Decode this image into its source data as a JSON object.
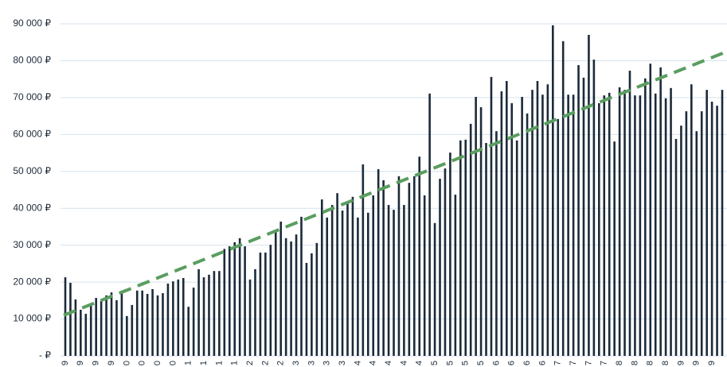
{
  "chart_data": {
    "type": "bar",
    "categories": [
      "9",
      null,
      null,
      "9",
      null,
      null,
      "9",
      null,
      null,
      "9",
      null,
      null,
      "0",
      null,
      null,
      "0",
      null,
      null,
      "0",
      null,
      null,
      "0",
      null,
      null,
      "1",
      null,
      null,
      "1",
      null,
      null,
      "1",
      null,
      null,
      "1",
      null,
      null,
      "2",
      null,
      null,
      "2",
      null,
      null,
      "2",
      null,
      null,
      "3",
      null,
      null,
      "3",
      null,
      null,
      "3",
      null,
      null,
      "3",
      null,
      null,
      "4",
      null,
      null,
      "4",
      null,
      null,
      "4",
      null,
      null,
      "4",
      null,
      null,
      "4",
      null,
      null,
      "5",
      null,
      null,
      "5",
      null,
      null,
      "5",
      null,
      null,
      "5",
      null,
      null,
      "6",
      null,
      null,
      "6",
      null,
      null,
      "6",
      null,
      null,
      "6",
      null,
      null,
      "7",
      null,
      null,
      "7",
      null,
      null,
      "7",
      null,
      null,
      "7",
      null,
      null,
      "8",
      null,
      null,
      "8",
      null,
      null,
      "8",
      null,
      null,
      "8",
      null,
      null,
      "9",
      null,
      null,
      "9",
      null,
      null,
      "9",
      null,
      null
    ],
    "values": [
      21300,
      19800,
      15300,
      12500,
      11400,
      13600,
      15700,
      14900,
      16400,
      17200,
      15100,
      17700,
      10800,
      13800,
      17700,
      17700,
      16800,
      18100,
      16400,
      17000,
      19600,
      20200,
      20700,
      21100,
      13300,
      18500,
      23500,
      21300,
      22000,
      23000,
      23000,
      29000,
      29700,
      30800,
      31900,
      29700,
      20700,
      23500,
      28000,
      28000,
      30100,
      33600,
      36400,
      31900,
      31000,
      32900,
      37700,
      25200,
      27800,
      30600,
      42400,
      37500,
      40900,
      44100,
      39400,
      41300,
      43100,
      37500,
      51900,
      38800,
      43500,
      50600,
      47600,
      40900,
      39600,
      48700,
      40900,
      46900,
      48700,
      54000,
      43500,
      71100,
      36000,
      48000,
      50800,
      55100,
      43700,
      58400,
      58600,
      62900,
      70200,
      67400,
      57700,
      75600,
      60900,
      71700,
      74500,
      68500,
      58400,
      70200,
      65700,
      72100,
      74500,
      70800,
      73600,
      89600,
      64200,
      85300,
      70800,
      70800,
      78800,
      75400,
      87000,
      80300,
      68500,
      70600,
      71300,
      58100,
      72800,
      72100,
      77300,
      70600,
      70600,
      75200,
      79200,
      71100,
      78200,
      69800,
      72600,
      58800,
      62400,
      66300,
      73600,
      60900,
      66300,
      72100,
      68900,
      67800,
      72100
    ],
    "color": "#1c2b3a",
    "trend": {
      "values": [
        11000,
        82500
      ],
      "color": "#5a9e5f"
    },
    "ylim": [
      0,
      90000
    ],
    "yticks": [
      {
        "value": 0,
        "label": "-   ₽"
      },
      {
        "value": 10000,
        "label": "10 000 ₽"
      },
      {
        "value": 20000,
        "label": "20 000 ₽"
      },
      {
        "value": 30000,
        "label": "30 000 ₽"
      },
      {
        "value": 40000,
        "label": "40 000 ₽"
      },
      {
        "value": 50000,
        "label": "50 000 ₽"
      },
      {
        "value": 60000,
        "label": "60 000 ₽"
      },
      {
        "value": 70000,
        "label": "70 000 ₽"
      },
      {
        "value": 80000,
        "label": "80 000 ₽"
      },
      {
        "value": 90000,
        "label": "90 000 ₽"
      }
    ],
    "grid": true
  }
}
